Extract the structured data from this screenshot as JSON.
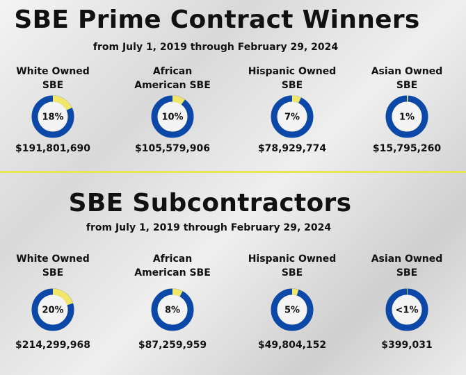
{
  "sections": [
    {
      "title": "SBE Prime Contract Winners",
      "subtitle": "from July 1, 2019 through February 29, 2024",
      "items": [
        {
          "label": "White Owned SBE",
          "percent": 18,
          "percent_label": "18%",
          "amount": "$191,801,690"
        },
        {
          "label": "African American SBE",
          "percent": 10,
          "percent_label": "10%",
          "amount": "$105,579,906"
        },
        {
          "label": "Hispanic Owned SBE",
          "percent": 7,
          "percent_label": "7%",
          "amount": "$78,929,774"
        },
        {
          "label": "Asian Owned SBE",
          "percent": 1,
          "percent_label": "1%",
          "amount": "$15,795,260"
        }
      ]
    },
    {
      "title": "SBE Subcontractors",
      "subtitle": "from July 1, 2019 through February 29, 2024",
      "items": [
        {
          "label": "White Owned SBE",
          "percent": 20,
          "percent_label": "20%",
          "amount": "$214,299,968"
        },
        {
          "label": "African American SBE",
          "percent": 8,
          "percent_label": "8%",
          "amount": "$87,259,959"
        },
        {
          "label": "Hispanic Owned SBE",
          "percent": 5,
          "percent_label": "5%",
          "amount": "$49,804,152"
        },
        {
          "label": "Asian Owned SBE",
          "percent": 0.5,
          "percent_label": "<1%",
          "amount": "$399,031"
        }
      ]
    }
  ]
}
